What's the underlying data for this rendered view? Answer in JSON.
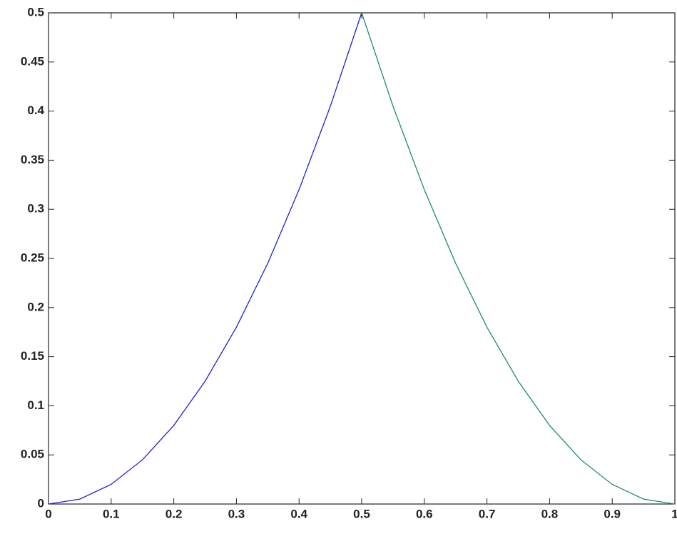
{
  "chart_data": {
    "type": "line",
    "x": [
      0,
      0.05,
      0.1,
      0.15,
      0.2,
      0.25,
      0.3,
      0.35,
      0.4,
      0.45,
      0.5,
      0.55,
      0.6,
      0.65,
      0.7,
      0.75,
      0.8,
      0.85,
      0.9,
      0.95,
      1
    ],
    "series": [
      {
        "color": "#2020d0",
        "values": [
          0,
          0.005,
          0.02,
          0.045,
          0.08,
          0.125,
          0.18,
          0.245,
          0.32,
          0.405,
          0.5,
          null,
          null,
          null,
          null,
          null,
          null,
          null,
          null,
          null,
          null
        ]
      },
      {
        "color": "#1a9060",
        "values": [
          null,
          null,
          null,
          null,
          null,
          null,
          null,
          null,
          null,
          null,
          0.5,
          0.405,
          0.32,
          0.245,
          0.18,
          0.125,
          0.08,
          0.045,
          0.02,
          0.005,
          0
        ]
      }
    ],
    "xlim": [
      0,
      1
    ],
    "xticks": [
      0,
      0.1,
      0.2,
      0.3,
      0.4,
      0.5,
      0.6,
      0.7,
      0.8,
      0.9,
      1
    ],
    "ylim": [
      0,
      0.5
    ],
    "yticks": [
      0,
      0.05,
      0.1,
      0.15,
      0.2,
      0.25,
      0.3,
      0.35,
      0.4,
      0.45,
      0.5
    ],
    "grid": false
  }
}
